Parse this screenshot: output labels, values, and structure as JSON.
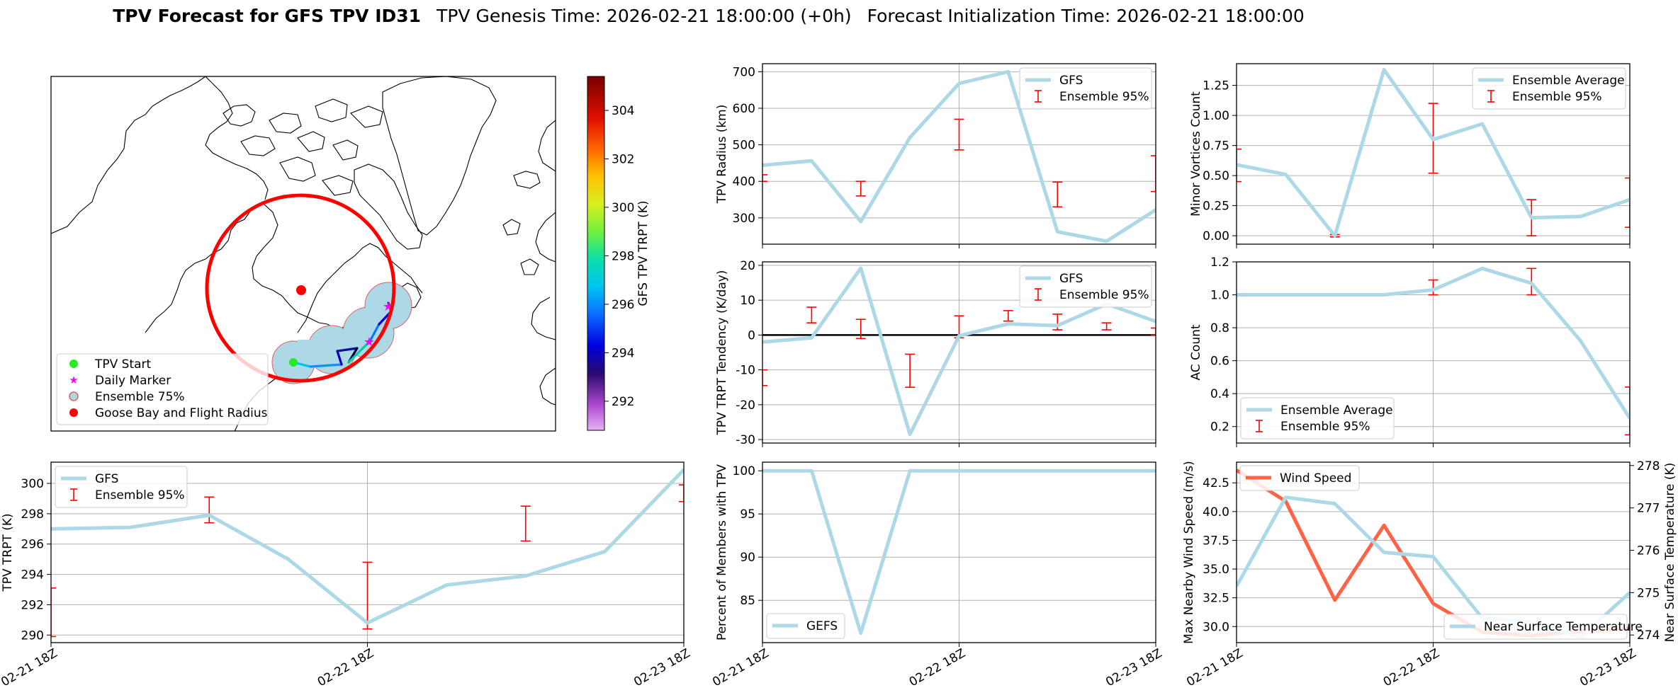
{
  "header": {
    "title_bold": "TPV Forecast for GFS TPV ID31",
    "genesis": "TPV Genesis Time: 2026-02-21 18:00:00 (+0h)",
    "init": "Forecast Initialization Time: 2026-02-21 18:00:00"
  },
  "colors": {
    "series": "#add8e6",
    "errorbar": "#ff0000",
    "wind": "#ff6347",
    "temp_axis": "#4169e1",
    "circle": "#ff0000",
    "ensemble_fill": "#add8e6"
  },
  "map": {
    "colorbar_label": "GFS TPV TRPT (K)",
    "colorbar_ticks": [
      292,
      294,
      296,
      298,
      300,
      302,
      304
    ],
    "colorbar_range": [
      290.8,
      305.4
    ],
    "legend": [
      {
        "label": "TPV Start",
        "marker": "green-dot"
      },
      {
        "label": "Daily Marker",
        "marker": "magenta-star"
      },
      {
        "label": "Ensemble 75%",
        "marker": "lightblue-circle"
      },
      {
        "label": "Goose Bay and Flight Radius",
        "marker": "red-dot"
      }
    ]
  },
  "chart_data": [
    {
      "id": "trpt",
      "type": "line",
      "ylabel": "TPV TRPT (K)",
      "x": [
        0,
        6,
        12,
        18,
        24,
        30,
        36,
        42,
        48
      ],
      "xticks": [
        0,
        24,
        48
      ],
      "xticklabels": [
        "02-21 18Z",
        "02-22 18Z",
        "02-23 18Z"
      ],
      "xlim": [
        0,
        48
      ],
      "ylim": [
        289.5,
        301.4
      ],
      "yticks": [
        290,
        292,
        294,
        296,
        298,
        300
      ],
      "series": [
        {
          "name": "GFS",
          "values": [
            297.0,
            297.1,
            297.9,
            295.0,
            290.8,
            293.3,
            293.9,
            295.5,
            300.9
          ]
        }
      ],
      "errorbars": [
        {
          "name": "Ensemble 95%",
          "x": [
            0,
            12,
            24,
            36,
            48
          ],
          "low": [
            289.9,
            297.4,
            290.4,
            296.2,
            298.8
          ],
          "high": [
            293.1,
            299.1,
            294.8,
            298.5,
            299.9
          ]
        }
      ],
      "legend": [
        "GFS",
        "Ensemble 95%"
      ],
      "legend_position": "upper-left",
      "grid": true
    },
    {
      "id": "radius",
      "type": "line",
      "ylabel": "TPV Radius (km)",
      "x": [
        0,
        6,
        12,
        18,
        24,
        30,
        36,
        42,
        48
      ],
      "xlim": [
        0,
        48
      ],
      "ylim": [
        228,
        722
      ],
      "yticks": [
        300,
        400,
        500,
        600,
        700
      ],
      "series": [
        {
          "name": "GFS",
          "values": [
            444,
            456,
            290,
            520,
            668,
            700,
            262,
            236,
            322
          ]
        }
      ],
      "errorbars": [
        {
          "name": "Ensemble 95%",
          "x": [
            0,
            12,
            24,
            36,
            48
          ],
          "low": [
            400,
            360,
            486,
            330,
            372
          ],
          "high": [
            418,
            400,
            570,
            398,
            470
          ]
        }
      ],
      "legend": [
        "GFS",
        "Ensemble 95%"
      ],
      "legend_position": "upper-right",
      "grid": true
    },
    {
      "id": "minor",
      "type": "line",
      "ylabel": "Minor Vortices Count",
      "x": [
        0,
        6,
        12,
        18,
        24,
        30,
        36,
        42,
        48
      ],
      "xlim": [
        0,
        48
      ],
      "ylim": [
        -0.07,
        1.43
      ],
      "yticks": [
        0.0,
        0.25,
        0.5,
        0.75,
        1.0,
        1.25
      ],
      "yticklabels": [
        "0.00",
        "0.25",
        "0.50",
        "0.75",
        "1.00",
        "1.25"
      ],
      "series": [
        {
          "name": "Ensemble Average",
          "values": [
            0.59,
            0.51,
            0.0,
            1.38,
            0.8,
            0.93,
            0.15,
            0.16,
            0.3
          ]
        }
      ],
      "errorbars": [
        {
          "name": "Ensemble 95%",
          "x": [
            0,
            12,
            24,
            36,
            48
          ],
          "low": [
            0.45,
            -0.01,
            0.52,
            0.0,
            0.07
          ],
          "high": [
            0.72,
            0.01,
            1.1,
            0.3,
            0.48
          ]
        }
      ],
      "legend": [
        "Ensemble Average",
        "Ensemble 95%"
      ],
      "legend_position": "upper-right",
      "grid": true
    },
    {
      "id": "tendency",
      "type": "line",
      "ylabel": "TPV TRPT Tendency (K/day)",
      "x": [
        0,
        6,
        12,
        18,
        24,
        30,
        36,
        42,
        48
      ],
      "xlim": [
        0,
        48
      ],
      "ylim": [
        -31,
        21
      ],
      "yticks": [
        -30,
        -20,
        -10,
        0,
        10,
        20
      ],
      "zero_line": true,
      "series": [
        {
          "name": "GFS",
          "values": [
            -2,
            -0.8,
            19.2,
            -28.5,
            -0.2,
            3.2,
            2.7,
            8.9,
            3.9
          ]
        }
      ],
      "errorbars": [
        {
          "name": "Ensemble 95%",
          "x": [
            0,
            6,
            12,
            18,
            24,
            30,
            36,
            42,
            48
          ],
          "low": [
            -14.5,
            3.5,
            -1,
            -15,
            -0.8,
            4,
            1.5,
            1.5,
            0
          ],
          "high": [
            -10,
            8,
            4.5,
            -5.5,
            5.5,
            7,
            6,
            3.5,
            2
          ]
        }
      ],
      "legend": [
        "GFS",
        "Ensemble 95%"
      ],
      "legend_position": "upper-right",
      "grid": true
    },
    {
      "id": "ac",
      "type": "line",
      "ylabel": "AC Count",
      "x": [
        0,
        6,
        12,
        18,
        24,
        30,
        36,
        42,
        48
      ],
      "xlim": [
        0,
        48
      ],
      "ylim": [
        0.1,
        1.2
      ],
      "yticks": [
        0.2,
        0.4,
        0.6,
        0.8,
        1.0,
        1.2
      ],
      "yticklabels": [
        "0.2",
        "0.4",
        "0.6",
        "0.8",
        "1.0",
        "1.2"
      ],
      "series": [
        {
          "name": "Ensemble Average",
          "values": [
            1.0,
            1.0,
            1.0,
            1.0,
            1.03,
            1.16,
            1.07,
            0.72,
            0.25
          ]
        }
      ],
      "errorbars": [
        {
          "name": "Ensemble 95%",
          "x": [
            0,
            12,
            24,
            36,
            48
          ],
          "low": [
            1.0,
            0.995,
            1.0,
            1.0,
            0.15
          ],
          "high": [
            1.0,
            1.005,
            1.09,
            1.16,
            0.44
          ]
        }
      ],
      "legend": [
        "Ensemble Average",
        "Ensemble 95%"
      ],
      "legend_position": "lower-left",
      "grid": true
    },
    {
      "id": "percent",
      "type": "line",
      "ylabel": "Percent of Members with TPV",
      "x": [
        0,
        6,
        12,
        18,
        24,
        30,
        36,
        42,
        48
      ],
      "xticks": [
        0,
        24,
        48
      ],
      "xticklabels": [
        "02-21 18Z",
        "02-22 18Z",
        "02-23 18Z"
      ],
      "xlim": [
        0,
        48
      ],
      "ylim": [
        80.1,
        101
      ],
      "yticks": [
        85,
        90,
        95,
        100
      ],
      "series": [
        {
          "name": "GEFS",
          "values": [
            100,
            100,
            81.2,
            100,
            100,
            100,
            100,
            100,
            100
          ]
        }
      ],
      "legend": [
        "GEFS"
      ],
      "legend_position": "lower-left",
      "grid": true
    },
    {
      "id": "wind_temp",
      "type": "line",
      "ylabel": "Max Nearby Wind Speed (m/s)",
      "ylabel2": "Near Surface Temperature (K)",
      "x": [
        0,
        6,
        12,
        18,
        24,
        30,
        36,
        42,
        48
      ],
      "xticks": [
        0,
        24,
        48
      ],
      "xticklabels": [
        "02-21 18Z",
        "02-22 18Z",
        "02-23 18Z"
      ],
      "xlim": [
        0,
        48
      ],
      "ylim": [
        28.6,
        44.3
      ],
      "yticks": [
        30.0,
        32.5,
        35.0,
        37.5,
        40.0,
        42.5
      ],
      "yticklabels": [
        "30.0",
        "32.5",
        "35.0",
        "37.5",
        "40.0",
        "42.5"
      ],
      "ylim2": [
        273.82,
        278.08
      ],
      "yticks2": [
        274,
        275,
        276,
        277,
        278
      ],
      "series": [
        {
          "name": "Wind Speed",
          "axis": "left",
          "values": [
            43.6,
            40.9,
            32.3,
            38.8,
            32.0,
            29.5,
            29.2,
            29.6,
            29.8
          ]
        },
        {
          "name": "Near Surface Temperature",
          "axis": "right",
          "values": [
            275.15,
            277.25,
            277.1,
            275.95,
            275.85,
            274.4,
            274.3,
            273.95,
            275.0
          ]
        }
      ],
      "legend": [
        "Wind Speed",
        "Near Surface Temperature"
      ],
      "grid": true
    }
  ]
}
